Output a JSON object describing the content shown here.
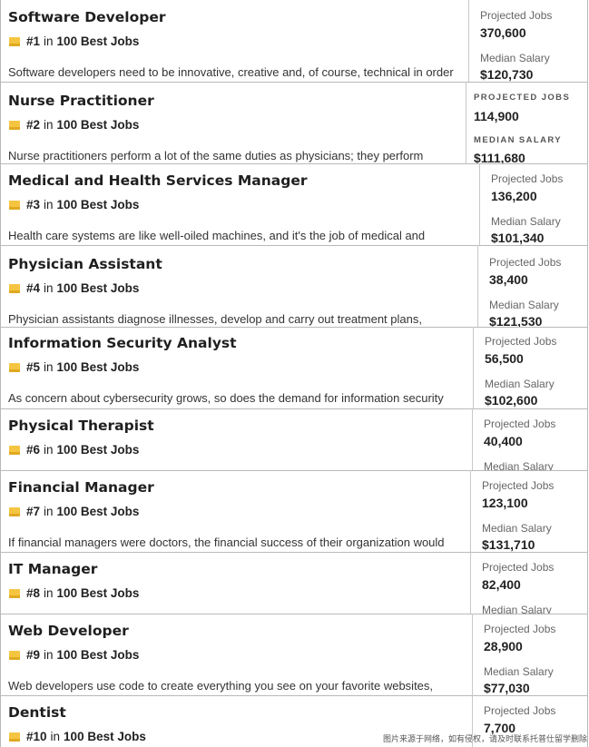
{
  "jobs": [
    {
      "title": "Software Developer",
      "rank": "#1",
      "rank_word": "in",
      "list": "100 Best Jobs",
      "description": "Software developers need to be innovative, creative and, of course, technical in order",
      "jobs_label": "Projected Jobs",
      "jobs": "370,600",
      "salary_label": "Median Salary",
      "salary": "$120,730"
    },
    {
      "title": "Nurse Practitioner",
      "rank": "#2",
      "rank_word": "in",
      "list": "100 Best Jobs",
      "description": "Nurse practitioners perform a lot of the same duties as physicians; they perform",
      "jobs_label": "PROJECTED JOBS",
      "jobs": "114,900",
      "salary_label": "MEDIAN SALARY",
      "salary": "$111,680"
    },
    {
      "title": "Medical and Health Services Manager",
      "rank": "#3",
      "rank_word": "in",
      "list": "100 Best Jobs",
      "description": "Health care systems are like well-oiled machines, and it's the job of medical and",
      "jobs_label": "Projected Jobs",
      "jobs": "136,200",
      "salary_label": "Median Salary",
      "salary": "$101,340"
    },
    {
      "title": "Physician Assistant",
      "rank": "#4",
      "rank_word": "in",
      "list": "100 Best Jobs",
      "description": "Physician assistants diagnose illnesses, develop and carry out treatment plans,",
      "jobs_label": "Projected Jobs",
      "jobs": "38,400",
      "salary_label": "Median Salary",
      "salary": "$121,530"
    },
    {
      "title": "Information Security Analyst",
      "rank": "#5",
      "rank_word": "in",
      "list": "100 Best Jobs",
      "description": "As concern about cybersecurity grows, so does the demand for information security",
      "jobs_label": "Projected Jobs",
      "jobs": "56,500",
      "salary_label": "Median Salary",
      "salary": "$102,600"
    },
    {
      "title": "Physical Therapist",
      "rank": "#6",
      "rank_word": "in",
      "list": "100 Best Jobs",
      "jobs_label": "Projected Jobs",
      "jobs": "40,400",
      "salary_label": "Median Salary"
    },
    {
      "title": "Financial Manager",
      "rank": "#7",
      "rank_word": "in",
      "list": "100 Best Jobs",
      "description": "If financial managers were doctors, the financial success of their organization would",
      "jobs_label": "Projected Jobs",
      "jobs": "123,100",
      "salary_label": "Median Salary",
      "salary": "$131,710"
    },
    {
      "title": "IT Manager",
      "rank": "#8",
      "rank_word": "in",
      "list": "100 Best Jobs",
      "jobs_label": "Projected Jobs",
      "jobs": "82,400",
      "salary_label": "Median Salary"
    },
    {
      "title": "Web Developer",
      "rank": "#9",
      "rank_word": "in",
      "list": "100 Best Jobs",
      "description": "Web developers use code to create everything you see on your favorite websites,",
      "jobs_label": "Projected Jobs",
      "jobs": "28,900",
      "salary_label": "Median Salary",
      "salary": "$77,030"
    },
    {
      "title": "Dentist",
      "rank": "#10",
      "rank_word": "in",
      "list": "100 Best Jobs",
      "jobs_label": "Projected Jobs",
      "jobs": "7,700"
    }
  ],
  "watermark": "图片来源于网络，如有侵权，请及时联系托普仕留学删除"
}
